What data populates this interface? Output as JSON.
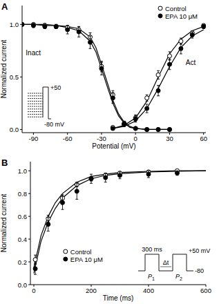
{
  "chart_data": [
    {
      "type": "scatter",
      "panel": "A",
      "x_label": "Potential (mV)",
      "y_label": "Normalized current",
      "xlim": [
        -100,
        62
      ],
      "ylim": [
        -0.03,
        1.18
      ],
      "xticks": [
        -90,
        -60,
        -30,
        0,
        30,
        60
      ],
      "yticks": [
        {
          "value": 0,
          "label": "0.0"
        },
        {
          "value": 0.5,
          "label": "0.5"
        },
        {
          "value": 1,
          "label": "1.0"
        }
      ],
      "legend": "top-right",
      "annotations": [
        "+50",
        "-80 mV"
      ],
      "series": [
        {
          "name": "Control",
          "color": "#000000",
          "marker": "open-circle",
          "line_style": "solid",
          "curves": [
            {
              "label": "Inact",
              "x": [
                -100,
                -90,
                -80,
                -70,
                -60,
                -50,
                -40,
                -30,
                -20,
                -10,
                0,
                10,
                20,
                30
              ],
              "values": [
                1.0,
                1.0,
                0.99,
                0.98,
                0.97,
                0.95,
                0.88,
                0.6,
                0.33,
                0.06,
                0.01,
                0,
                0,
                0
              ],
              "errors": [
                0.01,
                0.01,
                0.02,
                0.02,
                0.02,
                0.03,
                0.04,
                0.05,
                0.04,
                0.02,
                0.01,
                0.01,
                0.01,
                0.01
              ],
              "fit_x": [
                -100,
                -90,
                -80,
                -70,
                -60,
                -50,
                -40,
                -35,
                -30,
                -25,
                -20,
                -15,
                -10,
                -5,
                0,
                10,
                20,
                30
              ],
              "fit_values": [
                1,
                1,
                1,
                0.99,
                0.98,
                0.96,
                0.88,
                0.78,
                0.62,
                0.45,
                0.28,
                0.15,
                0.07,
                0.03,
                0.01,
                0,
                0,
                0
              ]
            },
            {
              "label": "Act",
              "x": [
                -20,
                -10,
                0,
                10,
                20,
                30,
                40,
                50,
                60
              ],
              "values": [
                0.02,
                0.05,
                0.11,
                0.3,
                0.52,
                0.7,
                0.84,
                0.92,
                0.99
              ],
              "errors": [
                0.01,
                0.02,
                0.03,
                0.03,
                0.04,
                0.04,
                0.03,
                0.02,
                0.01
              ],
              "fit_x": [
                -20,
                -10,
                0,
                10,
                20,
                30,
                40,
                50,
                60
              ],
              "fit_values": [
                0.01,
                0.04,
                0.11,
                0.27,
                0.5,
                0.72,
                0.86,
                0.94,
                0.98
              ]
            }
          ]
        },
        {
          "name": "EPA 10 μM",
          "color": "#000000",
          "marker": "filled-circle",
          "line_style": "solid",
          "curves": [
            {
              "x": [
                -100,
                -90,
                -80,
                -70,
                -60,
                -50,
                -40,
                -30,
                -20,
                -10,
                0,
                10,
                20,
                30
              ],
              "values": [
                1.0,
                0.99,
                0.98,
                0.98,
                0.95,
                0.93,
                0.83,
                0.58,
                0.3,
                0.05,
                0.01,
                0,
                0,
                0
              ],
              "errors": [
                0.01,
                0.02,
                0.02,
                0.02,
                0.04,
                0.05,
                0.06,
                0.06,
                0.05,
                0.02,
                0.01,
                0.01,
                0.01,
                0.01
              ],
              "fit_x": [
                -100,
                -90,
                -80,
                -70,
                -60,
                -50,
                -40,
                -35,
                -30,
                -25,
                -20,
                -15,
                -10,
                -5,
                0,
                10,
                20,
                30
              ],
              "fit_values": [
                1,
                1,
                0.99,
                0.99,
                0.97,
                0.94,
                0.84,
                0.74,
                0.58,
                0.41,
                0.25,
                0.13,
                0.06,
                0.02,
                0.01,
                0,
                0,
                0
              ]
            },
            {
              "x": [
                -20,
                -10,
                0,
                10,
                20,
                30,
                40,
                50,
                60
              ],
              "values": [
                0.01,
                0.05,
                0.1,
                0.2,
                0.37,
                0.62,
                0.77,
                0.9,
                0.98
              ],
              "errors": [
                0.01,
                0.02,
                0.03,
                0.04,
                0.05,
                0.05,
                0.05,
                0.03,
                0.02
              ],
              "fit_x": [
                -20,
                -10,
                0,
                10,
                20,
                30,
                40,
                50,
                60
              ],
              "fit_values": [
                0.01,
                0.03,
                0.08,
                0.2,
                0.39,
                0.6,
                0.78,
                0.89,
                0.95
              ]
            }
          ]
        }
      ]
    },
    {
      "type": "scatter",
      "panel": "B",
      "x_label": "Time (ms)",
      "y_label": "Normalized current",
      "xlim": [
        -12,
        600
      ],
      "ylim": [
        0,
        1.08
      ],
      "xticks": [
        0,
        200,
        400,
        600
      ],
      "yticks": [
        {
          "value": 0,
          "label": "0.0"
        },
        {
          "value": 0.2,
          "label": "0.2"
        },
        {
          "value": 0.4,
          "label": "0.4"
        },
        {
          "value": 0.6,
          "label": "0.6"
        },
        {
          "value": 0.8,
          "label": "0.8"
        },
        {
          "value": 1,
          "label": "1.0"
        }
      ],
      "legend": "bottom-center",
      "annotations": [
        "300 ms",
        "Δt",
        "P1",
        "P2",
        "+50 mV",
        "-80"
      ],
      "series": [
        {
          "name": "Control",
          "color": "#000000",
          "marker": "open-circle",
          "line_style": "solid",
          "curves": [
            {
              "x": [
                5,
                50,
                100,
                150,
                200,
                250,
                300,
                400,
                500
              ],
              "values": [
                0.22,
                0.58,
                0.76,
                0.88,
                0.93,
                0.96,
                0.98,
                0.99,
                1.0
              ],
              "errors": [
                0.04,
                0.03,
                0.03,
                0.02,
                0.02,
                0.02,
                0.01,
                0.01,
                0.01
              ],
              "fit_x": [
                0,
                25,
                50,
                75,
                100,
                150,
                200,
                250,
                300,
                400,
                500,
                600
              ],
              "fit_values": [
                0.15,
                0.43,
                0.6,
                0.72,
                0.8,
                0.9,
                0.95,
                0.97,
                0.985,
                0.995,
                1,
                1
              ]
            }
          ]
        },
        {
          "name": "EPA 10 μM",
          "color": "#000000",
          "marker": "filled-circle",
          "line_style": "solid",
          "curves": [
            {
              "x": [
                5,
                50,
                100,
                150,
                200,
                250,
                300,
                400,
                500
              ],
              "values": [
                0.14,
                0.53,
                0.72,
                0.82,
                0.93,
                0.94,
                0.96,
                0.97,
                0.98
              ],
              "errors": [
                0.05,
                0.06,
                0.06,
                0.07,
                0.04,
                0.04,
                0.03,
                0.03,
                0.02
              ],
              "fit_x": [
                0,
                25,
                50,
                75,
                100,
                150,
                200,
                250,
                300,
                400,
                500,
                600
              ],
              "fit_values": [
                0.1,
                0.38,
                0.55,
                0.67,
                0.76,
                0.87,
                0.93,
                0.96,
                0.975,
                0.99,
                0.995,
                1
              ]
            }
          ]
        }
      ]
    }
  ]
}
